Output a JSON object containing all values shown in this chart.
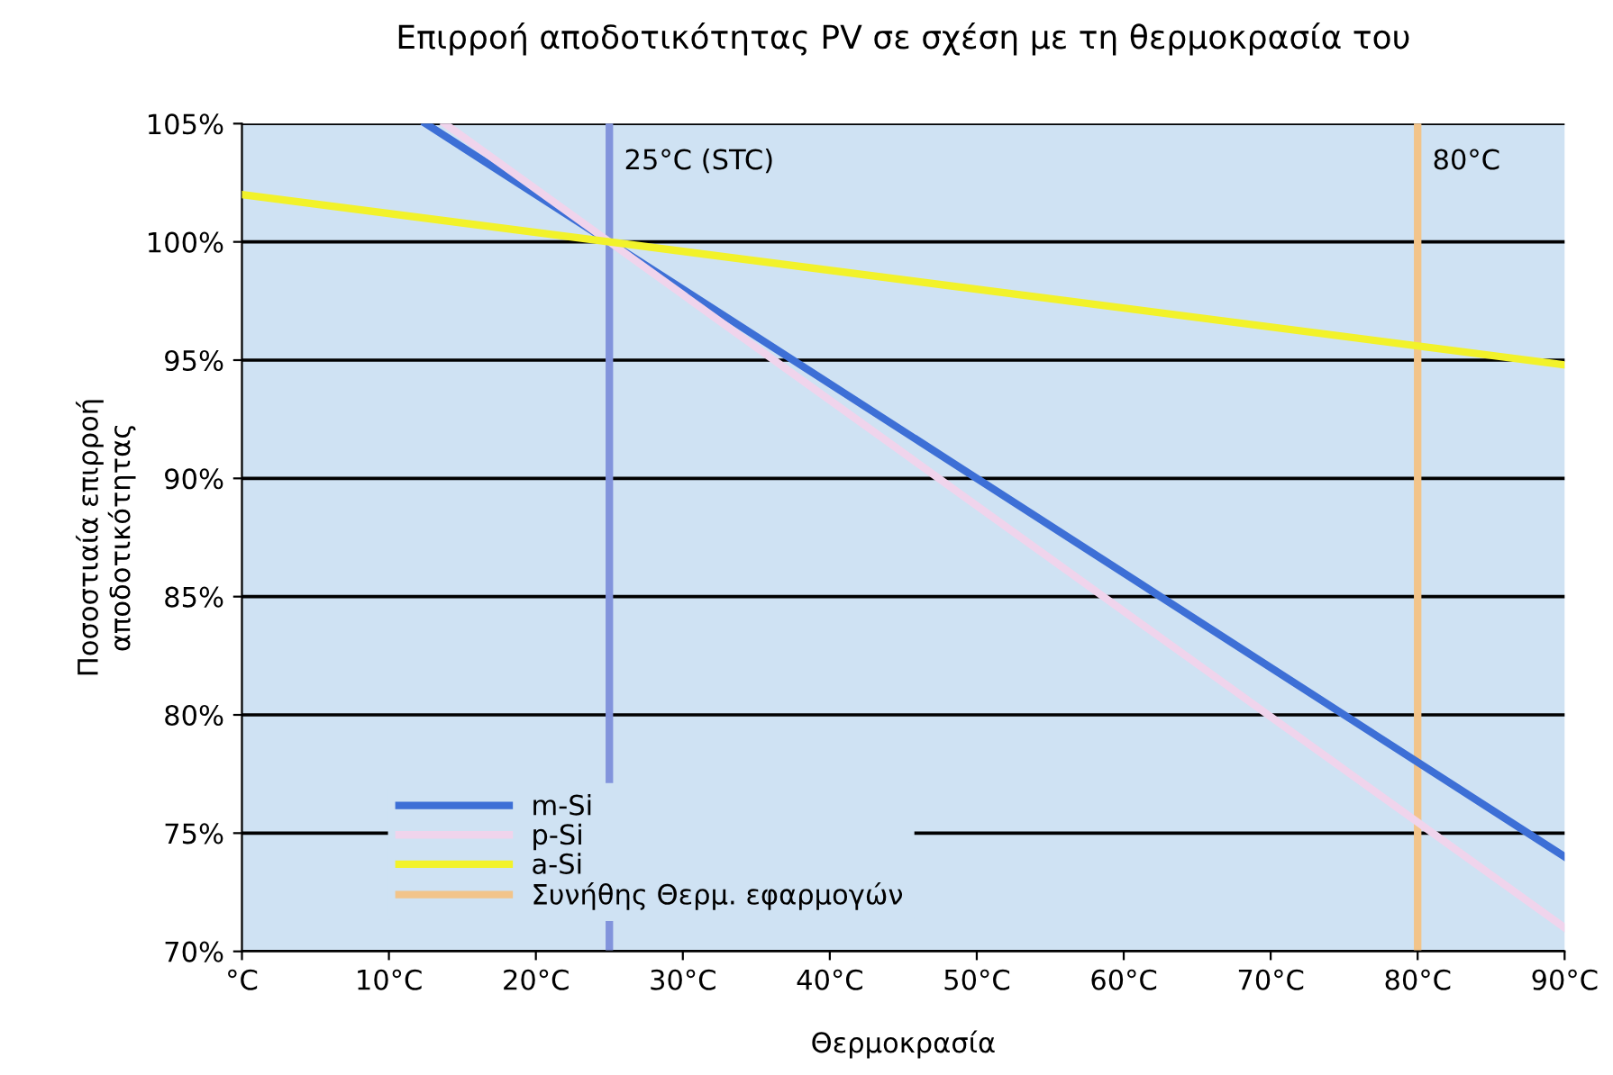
{
  "chart_data": {
    "type": "line",
    "title": "Επιρροή αποδοτικότητας PV σε σχέση με τη θερμοκρασία του",
    "xlabel": "Θερμοκρασία",
    "ylabel": "Ποσοστιαία επιρροή\nαποδοτικότητας",
    "series": [
      {
        "name": "m-Si",
        "color": "#3d6fd6",
        "x": [
          12.5,
          25,
          90
        ],
        "values": [
          105,
          100,
          74
        ]
      },
      {
        "name": "p-Si",
        "color": "#f0d4ec",
        "x": [
          13.8,
          25,
          90
        ],
        "values": [
          105,
          100,
          71
        ]
      },
      {
        "name": "a-Si",
        "color": "#f2f22a",
        "x": [
          0,
          25,
          90
        ],
        "values": [
          102,
          100,
          94.8
        ]
      }
    ],
    "ref_lines": [
      {
        "axis": "x",
        "value": 25,
        "label": "25°C (STC)",
        "color": "#8294dc"
      },
      {
        "axis": "x",
        "value": 80,
        "label": "80°C",
        "color": "#f2c48a"
      }
    ],
    "annotations": [
      "Συνήθης Θερμ. εφαρμογών"
    ],
    "xlim": [
      0,
      90
    ],
    "xticks": [
      {
        "value": 0,
        "label": "°C"
      },
      {
        "value": 10,
        "label": "10°C"
      },
      {
        "value": 20,
        "label": "20°C"
      },
      {
        "value": 30,
        "label": "30°C"
      },
      {
        "value": 40,
        "label": "40°C"
      },
      {
        "value": 50,
        "label": "50°C"
      },
      {
        "value": 60,
        "label": "60°C"
      },
      {
        "value": 70,
        "label": "70°C"
      },
      {
        "value": 80,
        "label": "80°C"
      },
      {
        "value": 90,
        "label": "90°C"
      }
    ],
    "ylim": [
      70,
      105
    ],
    "yticks": [
      {
        "value": 70,
        "label": "70%"
      },
      {
        "value": 75,
        "label": "75%"
      },
      {
        "value": 80,
        "label": "80%"
      },
      {
        "value": 85,
        "label": "85%"
      },
      {
        "value": 90,
        "label": "90%"
      },
      {
        "value": 95,
        "label": "95%"
      },
      {
        "value": 100,
        "label": "100%"
      },
      {
        "value": 105,
        "label": "105%"
      }
    ],
    "grid": "y",
    "legend": "bottom left",
    "marker": "none",
    "line_style": "solid"
  }
}
